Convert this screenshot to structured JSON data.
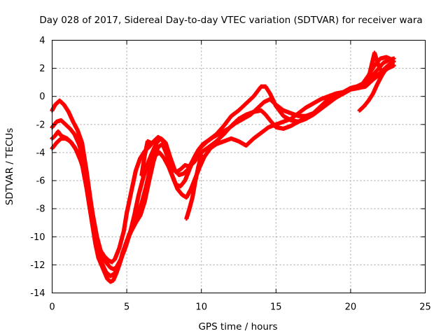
{
  "chart_data": {
    "type": "scatter",
    "title": "Day 028 of 2017, Sidereal Day-to-day VTEC variation (SDTVAR) for receiver wara",
    "xlabel": "GPS time / hours",
    "ylabel": "SDTVAR / TECUs",
    "xlim": [
      0,
      25
    ],
    "ylim": [
      -14,
      4
    ],
    "xticks": [
      0,
      5,
      10,
      15,
      20,
      25
    ],
    "yticks": [
      -14,
      -12,
      -10,
      -8,
      -6,
      -4,
      -2,
      0,
      2,
      4
    ],
    "grid": true,
    "marker_color": "#ff0000",
    "marker": "plus",
    "series": [
      {
        "x": [
          0.0,
          0.2,
          0.4,
          0.6,
          0.8,
          1.0,
          1.3,
          1.6,
          2.0,
          2.3,
          2.6,
          2.9,
          3.1,
          3.3,
          3.5,
          3.7,
          3.9,
          4.1,
          4.3,
          4.5,
          4.7,
          5.0,
          5.3,
          5.6,
          5.9,
          6.2,
          6.5,
          6.8,
          7.1,
          7.4,
          7.7,
          8.0,
          8.3,
          8.6,
          8.9,
          9.2,
          9.5,
          9.8,
          10.1,
          10.5,
          11.0,
          11.5,
          12.0,
          12.5,
          13.0,
          13.5,
          14.0,
          14.3,
          14.6,
          15.0,
          15.5,
          16.0,
          16.5,
          17.0,
          17.5,
          18.0,
          18.5,
          19.0,
          19.5,
          20.0,
          20.5,
          21.0,
          21.5,
          22.0,
          22.5,
          22.9
        ],
        "y": [
          -3.0,
          -2.8,
          -2.5,
          -2.8,
          -2.9,
          -3.0,
          -3.3,
          -3.8,
          -4.8,
          -6.5,
          -8.5,
          -10.5,
          -11.5,
          -12.0,
          -12.5,
          -13.0,
          -13.2,
          -13.1,
          -12.6,
          -12.0,
          -11.2,
          -10.3,
          -9.6,
          -9.0,
          -8.5,
          -7.5,
          -6.0,
          -4.6,
          -3.6,
          -3.4,
          -4.2,
          -5.0,
          -5.4,
          -5.2,
          -4.9,
          -5.0,
          -4.7,
          -4.3,
          -3.9,
          -3.6,
          -3.2,
          -2.7,
          -2.1,
          -1.6,
          -1.3,
          -1.1,
          -1.0,
          -1.3,
          -1.7,
          -2.2,
          -2.3,
          -2.1,
          -1.8,
          -1.5,
          -1.2,
          -0.7,
          -0.2,
          0.1,
          0.2,
          0.5,
          0.6,
          0.7,
          1.2,
          1.6,
          2.0,
          2.2
        ]
      },
      {
        "x": [
          0.0,
          0.3,
          0.6,
          0.9,
          1.2,
          1.5,
          1.8,
          2.1,
          2.4,
          2.7,
          3.0,
          3.3,
          3.6,
          3.9,
          4.1,
          4.3,
          4.6,
          4.9,
          5.2,
          5.5,
          5.8,
          6.1,
          6.4,
          6.7,
          7.0,
          7.3,
          7.6,
          7.9,
          8.2,
          8.5,
          8.8,
          9.1,
          9.4,
          9.7,
          10.0,
          10.4,
          10.8,
          11.3,
          11.8,
          12.3,
          12.8,
          13.3,
          13.8,
          14.2,
          14.6,
          15.0,
          15.5,
          16.0,
          16.5,
          17.0,
          17.5,
          18.0,
          18.5,
          19.0,
          19.5,
          20.0,
          20.5,
          21.0,
          21.4,
          21.8,
          22.2,
          22.6,
          22.9
        ],
        "y": [
          -2.2,
          -1.8,
          -1.7,
          -2.0,
          -2.3,
          -2.7,
          -3.4,
          -4.5,
          -6.3,
          -8.3,
          -10.0,
          -11.2,
          -11.8,
          -12.2,
          -12.3,
          -12.2,
          -11.6,
          -10.8,
          -9.8,
          -8.5,
          -7.0,
          -5.8,
          -4.8,
          -4.0,
          -3.3,
          -3.0,
          -3.3,
          -4.3,
          -5.2,
          -5.6,
          -5.5,
          -5.2,
          -4.6,
          -4.0,
          -3.6,
          -3.2,
          -2.9,
          -2.6,
          -2.3,
          -1.9,
          -1.6,
          -1.3,
          -0.8,
          -0.4,
          -0.2,
          -0.6,
          -1.0,
          -1.2,
          -1.4,
          -1.4,
          -1.2,
          -0.8,
          -0.4,
          -0.1,
          0.2,
          0.5,
          0.6,
          0.9,
          1.4,
          1.9,
          2.4,
          2.6,
          2.7
        ]
      },
      {
        "x": [
          0.0,
          0.2,
          0.5,
          0.8,
          1.1,
          1.4,
          1.7,
          2.0,
          2.3,
          2.6,
          2.9,
          3.2,
          3.5,
          3.8,
          4.0,
          4.2,
          4.5,
          4.8,
          5.0,
          5.3,
          5.6,
          5.9,
          6.2,
          6.5,
          6.8,
          7.1,
          7.4,
          7.7,
          8.0,
          8.3,
          8.6,
          8.9,
          9.2,
          9.5,
          9.8,
          10.1,
          10.5,
          11.0,
          11.5,
          12.0,
          12.5,
          13.0,
          13.5,
          14.0,
          14.3,
          14.6,
          15.0,
          15.5,
          16.0,
          16.5,
          17.0,
          17.5,
          18.0,
          18.5,
          19.0,
          19.5,
          20.0,
          20.4,
          20.8,
          21.2,
          21.6,
          22.0,
          22.4,
          22.8
        ],
        "y": [
          -1.0,
          -0.6,
          -0.3,
          -0.6,
          -1.1,
          -1.8,
          -2.4,
          -3.3,
          -5.3,
          -7.6,
          -9.6,
          -10.9,
          -11.4,
          -11.7,
          -11.8,
          -11.6,
          -10.8,
          -9.6,
          -8.3,
          -6.8,
          -5.3,
          -4.4,
          -3.9,
          -3.6,
          -3.2,
          -2.9,
          -3.1,
          -4.0,
          -5.5,
          -6.3,
          -6.4,
          -6.0,
          -5.2,
          -4.4,
          -3.8,
          -3.4,
          -3.1,
          -2.7,
          -2.1,
          -1.4,
          -1.0,
          -0.5,
          0.0,
          0.7,
          0.7,
          0.2,
          -0.7,
          -1.4,
          -1.7,
          -1.8,
          -1.6,
          -1.3,
          -0.9,
          -0.5,
          -0.1,
          0.3,
          0.6,
          0.7,
          0.9,
          1.5,
          2.2,
          2.7,
          2.8,
          2.6
        ]
      },
      {
        "x": [
          0.0,
          0.3,
          0.6,
          0.9,
          1.2,
          1.5,
          1.8,
          2.1,
          2.4,
          2.7,
          3.0,
          3.3,
          3.6,
          3.9,
          4.2,
          4.5,
          4.8,
          5.1,
          5.4,
          5.7,
          6.0,
          6.3,
          6.6,
          6.9,
          7.2,
          7.5,
          7.8,
          8.1,
          8.4,
          8.7,
          9.0,
          9.3,
          9.6,
          9.9,
          10.2,
          10.6,
          11.0,
          11.5,
          12.0,
          12.5,
          13.0,
          13.5,
          14.0,
          14.5,
          15.0,
          15.5,
          16.0,
          16.5,
          17.0,
          17.5,
          18.0,
          18.5,
          19.0,
          19.5,
          20.0,
          20.5,
          21.0,
          21.5,
          22.0,
          22.5,
          22.9
        ],
        "y": [
          -3.7,
          -3.3,
          -3.0,
          -3.0,
          -3.2,
          -3.6,
          -4.2,
          -5.2,
          -6.8,
          -8.7,
          -10.5,
          -11.8,
          -12.5,
          -12.8,
          -12.6,
          -12.0,
          -11.0,
          -10.0,
          -9.2,
          -8.5,
          -7.6,
          -6.4,
          -5.0,
          -4.2,
          -4.0,
          -4.4,
          -5.0,
          -5.8,
          -6.6,
          -7.0,
          -7.2,
          -6.6,
          -5.8,
          -5.0,
          -4.3,
          -3.7,
          -3.4,
          -3.2,
          -3.0,
          -3.2,
          -3.5,
          -3.0,
          -2.6,
          -2.2,
          -2.0,
          -1.8,
          -1.6,
          -1.2,
          -0.8,
          -0.5,
          -0.2,
          0.0,
          0.2,
          0.3,
          0.5,
          0.6,
          0.8,
          1.2,
          1.7,
          2.2,
          2.5
        ]
      },
      {
        "x": [
          9.0,
          9.2,
          9.4,
          9.6,
          9.8,
          10.0
        ],
        "y": [
          -8.7,
          -8.0,
          -7.2,
          -6.0,
          -5.0,
          -4.2
        ]
      },
      {
        "x": [
          6.0,
          6.2,
          6.4,
          6.6
        ],
        "y": [
          -5.6,
          -4.2,
          -3.2,
          -3.3
        ]
      },
      {
        "x": [
          20.6,
          20.9,
          21.2,
          21.5,
          21.8,
          22.1,
          22.4,
          22.7
        ],
        "y": [
          -1.0,
          -0.7,
          -0.3,
          0.2,
          0.9,
          1.5,
          2.0,
          2.3
        ]
      },
      {
        "x": [
          21.2,
          21.4,
          21.6,
          21.8,
          22.0
        ],
        "y": [
          1.3,
          2.2,
          3.1,
          2.4,
          1.9
        ]
      }
    ]
  }
}
